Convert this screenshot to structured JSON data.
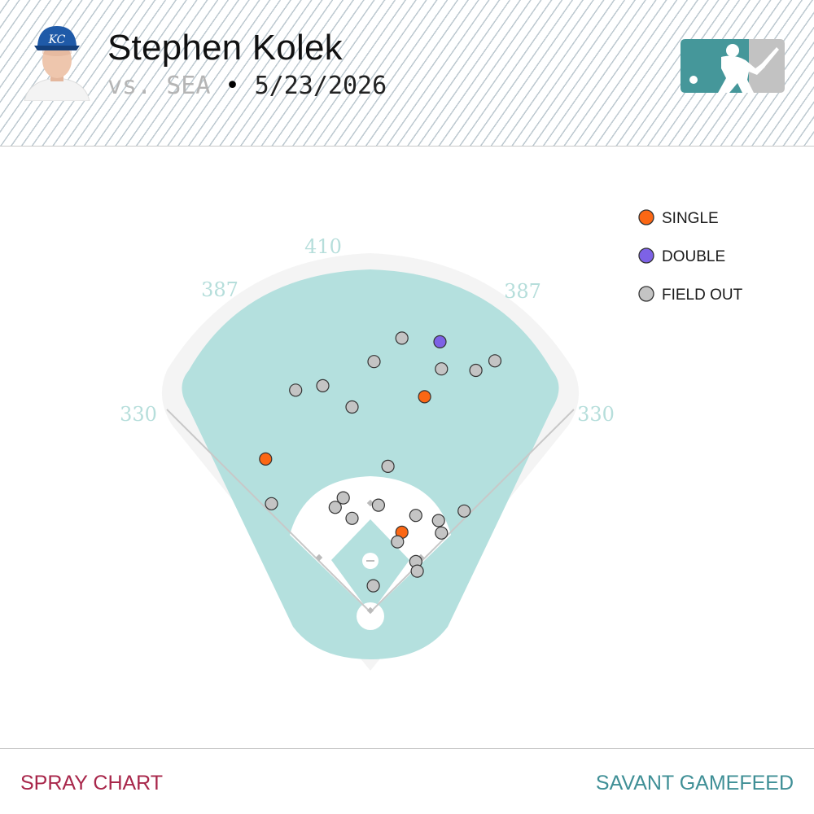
{
  "header": {
    "player_name": "Stephen Kolek",
    "opponent": "vs. SEA",
    "separator": " • ",
    "game_date": "5/23/2026",
    "team_logo_text": "KC",
    "logo_icon": "mlb-logo-icon"
  },
  "footer": {
    "left_label": "SPRAY CHART",
    "right_label": "SAVANT GAMEFEED"
  },
  "colors": {
    "single": "#fb6714",
    "double": "#7d62e6",
    "field_out": "#c4c4c4",
    "grass": "#b4e0de",
    "dirt": "#ffffff",
    "mlb_teal": "#45979a",
    "royals_blue": "#1f5aa8",
    "footer_left": "#a8264a",
    "footer_right": "#3f8f96"
  },
  "chart_data": {
    "type": "scatter",
    "title": "",
    "fence_distances": {
      "left_line": "330",
      "left_center": "387",
      "center": "410",
      "right_center": "387",
      "right_line": "330"
    },
    "legend": {
      "position": "top-right",
      "entries": [
        {
          "label": "SINGLE",
          "color": "#fb6714"
        },
        {
          "label": "DOUBLE",
          "color": "#7d62e6"
        },
        {
          "label": "FIELD OUT",
          "color": "#c4c4c4"
        }
      ]
    },
    "series": [
      {
        "name": "SINGLE",
        "color": "#fb6714",
        "points": [
          [
            -143,
            209
          ],
          [
            74,
            294
          ],
          [
            43,
            109
          ]
        ]
      },
      {
        "name": "DOUBLE",
        "color": "#7d62e6",
        "points": [
          [
            95,
            369
          ]
        ]
      },
      {
        "name": "FIELD OUT",
        "color": "#c4c4c4",
        "points": [
          [
            43,
            374
          ],
          [
            5,
            342
          ],
          [
            97,
            332
          ],
          [
            144,
            330
          ],
          [
            170,
            343
          ],
          [
            -65,
            309
          ],
          [
            -102,
            303
          ],
          [
            -25,
            280
          ],
          [
            24,
            199
          ],
          [
            -135,
            148
          ],
          [
            -37,
            156
          ],
          [
            -48,
            143
          ],
          [
            -25,
            128
          ],
          [
            11,
            146
          ],
          [
            62,
            132
          ],
          [
            93,
            125
          ],
          [
            128,
            138
          ],
          [
            97,
            108
          ],
          [
            37,
            96
          ],
          [
            62,
            69
          ],
          [
            64,
            56
          ],
          [
            4,
            36
          ]
        ]
      }
    ]
  }
}
